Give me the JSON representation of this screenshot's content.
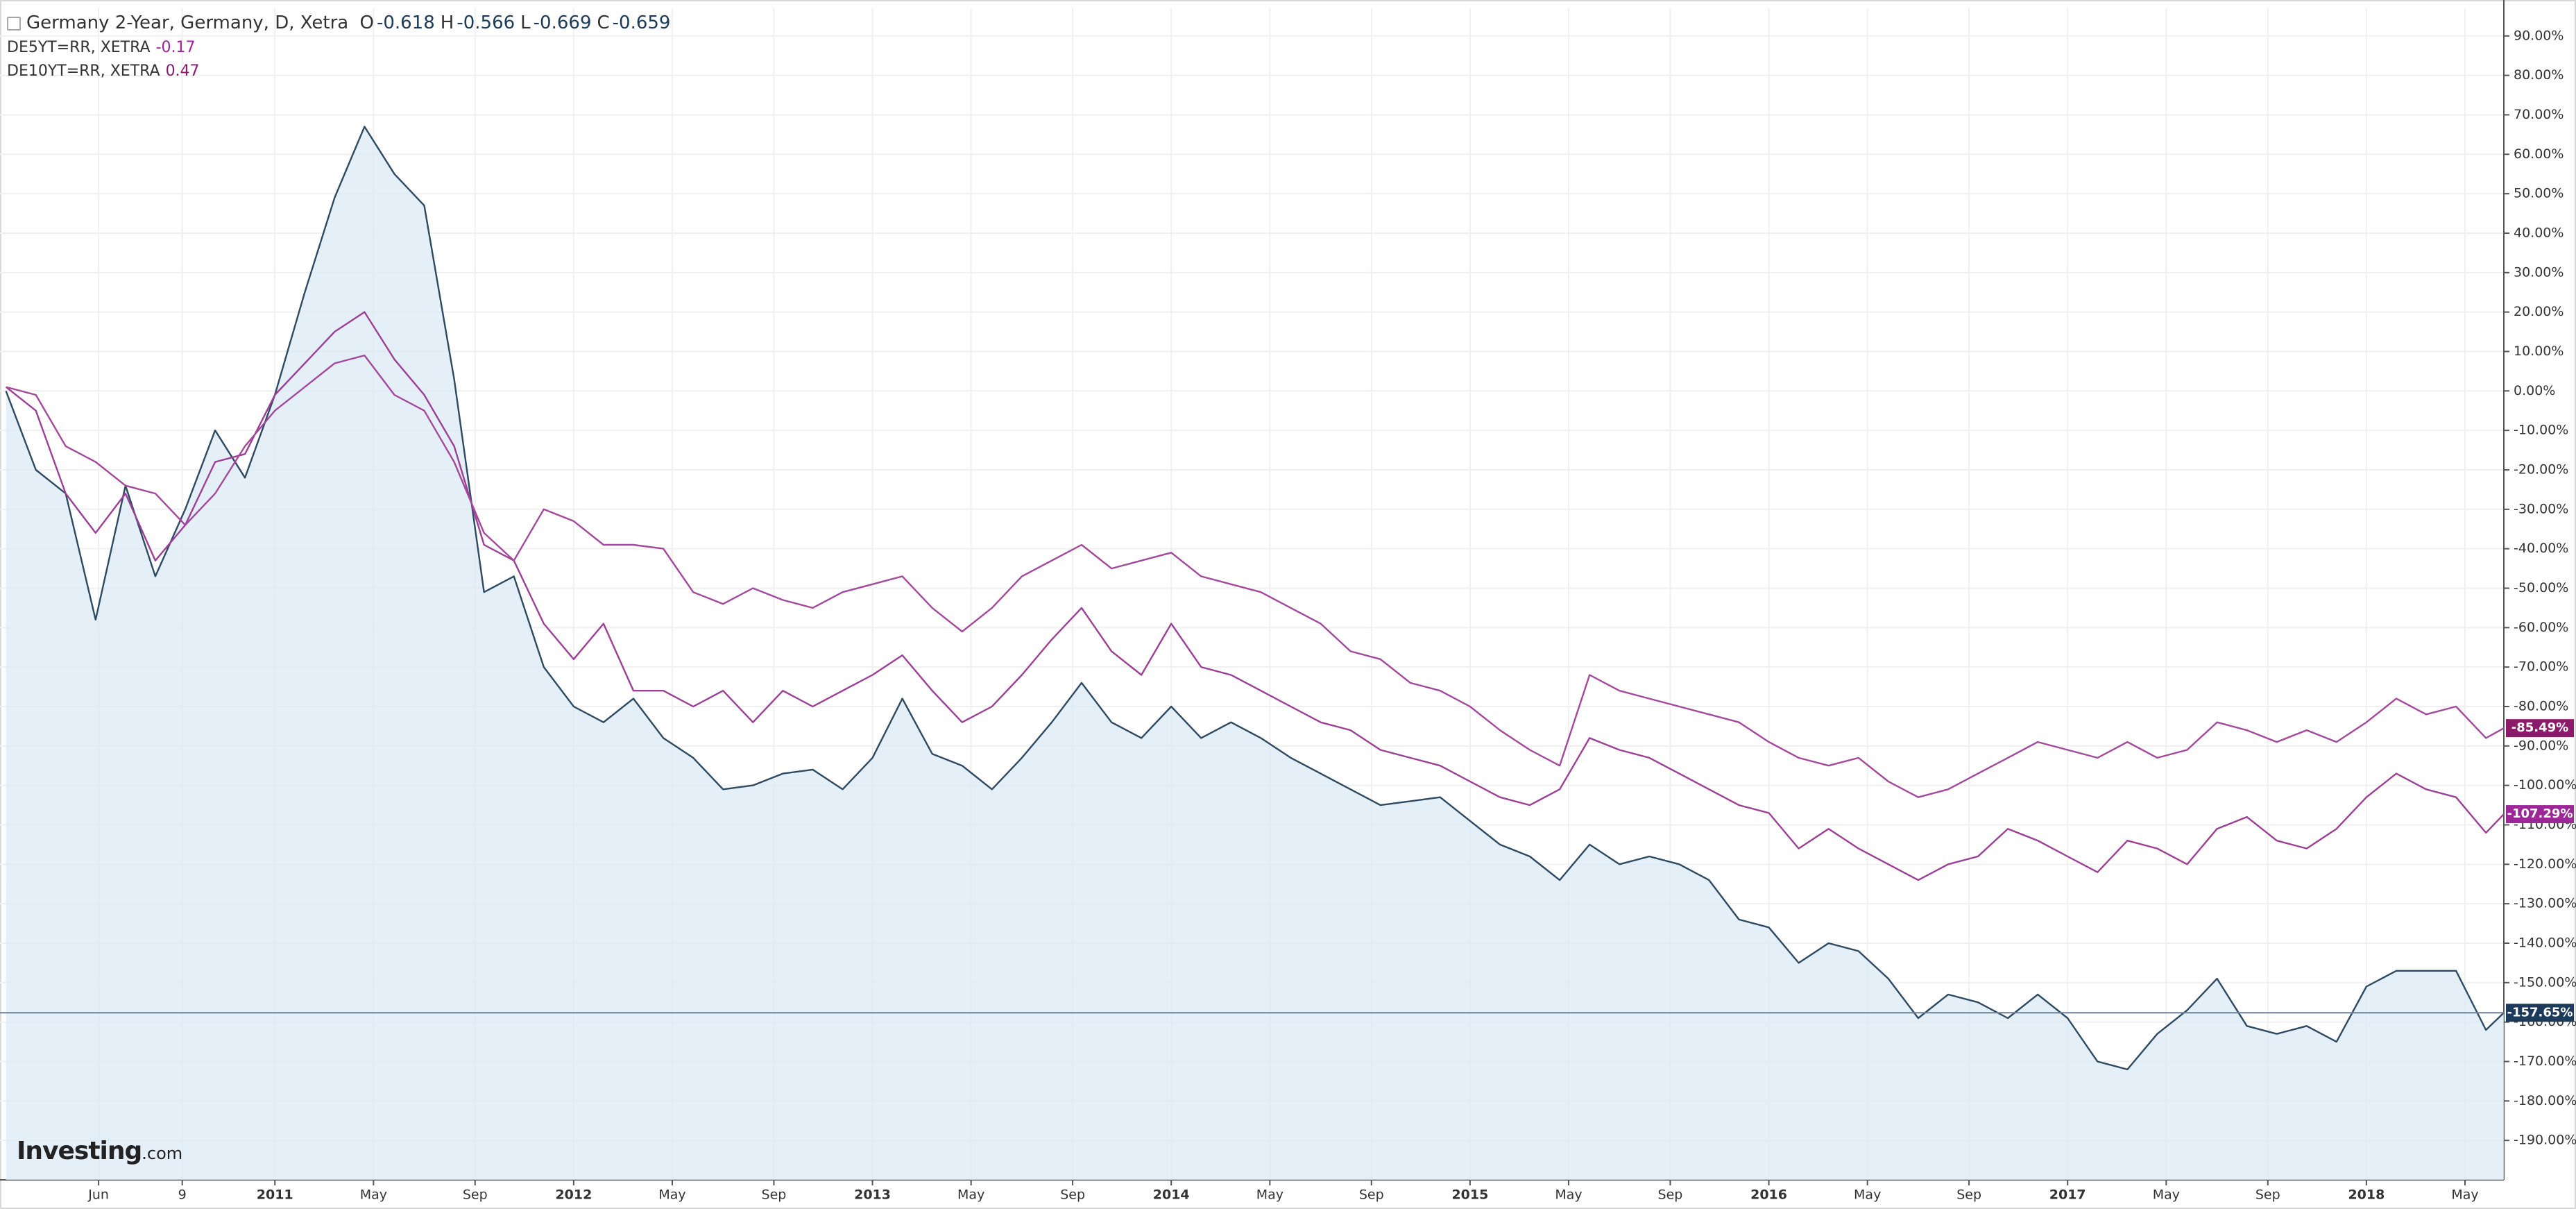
{
  "chart_data": {
    "type": "line",
    "x": [
      2010.1,
      2010.2,
      2010.3,
      2010.4,
      2010.5,
      2010.6,
      2010.7,
      2010.8,
      2010.9,
      2011.0,
      2011.1,
      2011.2,
      2011.3,
      2011.4,
      2011.5,
      2011.6,
      2011.7,
      2011.8,
      2011.9,
      2012.0,
      2012.1,
      2012.2,
      2012.3,
      2012.4,
      2012.5,
      2012.6,
      2012.7,
      2012.8,
      2012.9,
      2013.0,
      2013.1,
      2013.2,
      2013.3,
      2013.4,
      2013.5,
      2013.6,
      2013.7,
      2013.8,
      2013.9,
      2014.0,
      2014.1,
      2014.2,
      2014.3,
      2014.4,
      2014.5,
      2014.6,
      2014.7,
      2014.8,
      2014.9,
      2015.0,
      2015.1,
      2015.2,
      2015.3,
      2015.4,
      2015.5,
      2015.6,
      2015.7,
      2015.8,
      2015.9,
      2016.0,
      2016.1,
      2016.2,
      2016.3,
      2016.4,
      2016.5,
      2016.6,
      2016.7,
      2016.8,
      2016.9,
      2017.0,
      2017.1,
      2017.2,
      2017.3,
      2017.4,
      2017.5,
      2017.6,
      2017.7,
      2017.8,
      2017.9,
      2018.0,
      2018.1,
      2018.2,
      2018.3,
      2018.4,
      2018.46
    ],
    "series": [
      {
        "name": "Germany 2-Year, Germany, D, Xetra",
        "color": "#2e4a62",
        "fill": "#dce9f6",
        "ohlc": [
          {
            "label": "O",
            "value": -0.618
          },
          {
            "label": "H",
            "value": -0.566
          },
          {
            "label": "L",
            "value": -0.669
          },
          {
            "label": "C",
            "value": -0.659
          }
        ],
        "last_label": "-157.65%",
        "tag_color": "#1c3a5a",
        "values": [
          0,
          -20,
          -26,
          -58,
          -24,
          -47,
          -30,
          -10,
          -22,
          -1,
          25,
          49,
          67,
          55,
          47,
          3,
          -51,
          -47,
          -70,
          -80,
          -84,
          -78,
          -88,
          -93,
          -101,
          -100,
          -97,
          -96,
          -101,
          -93,
          -78,
          -92,
          -95,
          -101,
          -93,
          -84,
          -74,
          -84,
          -88,
          -80,
          -88,
          -84,
          -88,
          -93,
          -97,
          -101,
          -105,
          -104,
          -103,
          -109,
          -115,
          -118,
          -124,
          -115,
          -120,
          -118,
          -120,
          -124,
          -134,
          -136,
          -145,
          -140,
          -142,
          -149,
          -159,
          -153,
          -155,
          -159,
          -153,
          -159,
          -170,
          -172,
          -163,
          -157,
          -149,
          -161,
          -163,
          -161,
          -165,
          -151,
          -147,
          -147,
          -147,
          -162,
          -157.65
        ]
      },
      {
        "name": "DE5YT=RR, XETRA",
        "color": "#9c3f95",
        "quote": -0.17,
        "last_label": "-107.29%",
        "tag_color": "#9c2797",
        "values": [
          1,
          -5,
          -26,
          -36,
          -26,
          -43,
          -34,
          -18,
          -16,
          -1,
          7,
          15,
          20,
          8,
          -1,
          -14,
          -39,
          -43,
          -59,
          -68,
          -59,
          -76,
          -76,
          -80,
          -76,
          -84,
          -76,
          -80,
          -76,
          -72,
          -67,
          -76,
          -84,
          -80,
          -72,
          -63,
          -55,
          -66,
          -72,
          -59,
          -70,
          -72,
          -76,
          -80,
          -84,
          -86,
          -91,
          -93,
          -95,
          -99,
          -103,
          -105,
          -101,
          -88,
          -91,
          -93,
          -97,
          -101,
          -105,
          -107,
          -116,
          -111,
          -116,
          -120,
          -124,
          -120,
          -118,
          -111,
          -114,
          -118,
          -122,
          -114,
          -116,
          -120,
          -111,
          -108,
          -114,
          -116,
          -111,
          -103,
          -97,
          -101,
          -103,
          -112,
          -107.29
        ]
      },
      {
        "name": "DE10YT=RR, XETRA",
        "color": "#a4489c",
        "quote": 0.47,
        "last_label": "-85.49%",
        "tag_color": "#8b1a6b",
        "values": [
          1,
          -1,
          -14,
          -18,
          -24,
          -26,
          -34,
          -26,
          -14,
          -5,
          1,
          7,
          9,
          -1,
          -5,
          -18,
          -36,
          -43,
          -30,
          -33,
          -39,
          -39,
          -40,
          -51,
          -54,
          -50,
          -53,
          -55,
          -51,
          -49,
          -47,
          -55,
          -61,
          -55,
          -47,
          -43,
          -39,
          -45,
          -43,
          -41,
          -47,
          -49,
          -51,
          -55,
          -59,
          -66,
          -68,
          -74,
          -76,
          -80,
          -86,
          -91,
          -95,
          -72,
          -76,
          -78,
          -80,
          -82,
          -84,
          -89,
          -93,
          -95,
          -93,
          -99,
          -103,
          -101,
          -97,
          -93,
          -89,
          -91,
          -93,
          -89,
          -93,
          -91,
          -84,
          -86,
          -89,
          -86,
          -89,
          -84,
          -78,
          -82,
          -80,
          -88,
          -85.49
        ]
      }
    ],
    "xlim": [
      2010.08,
      2018.46
    ],
    "xticks": [
      {
        "value": 2010.41,
        "label": "Jun"
      },
      {
        "value": 2010.69,
        "label": "9"
      },
      2011,
      {
        "value": 2011.33,
        "label": "May"
      },
      {
        "value": 2011.67,
        "label": "Sep"
      },
      2012,
      {
        "value": 2012.33,
        "label": "May"
      },
      {
        "value": 2012.67,
        "label": "Sep"
      },
      2013,
      {
        "value": 2013.33,
        "label": "May"
      },
      {
        "value": 2013.67,
        "label": "Sep"
      },
      2014,
      {
        "value": 2014.33,
        "label": "May"
      },
      {
        "value": 2014.67,
        "label": "Sep"
      },
      2015,
      {
        "value": 2015.33,
        "label": "May"
      },
      {
        "value": 2015.67,
        "label": "Sep"
      },
      2016,
      {
        "value": 2016.33,
        "label": "May"
      },
      {
        "value": 2016.67,
        "label": "Sep"
      },
      2017,
      {
        "value": 2017.33,
        "label": "May"
      },
      {
        "value": 2017.67,
        "label": "Sep"
      },
      2018,
      {
        "value": 2018.33,
        "label": "May"
      }
    ],
    "ylim": [
      -200,
      97
    ],
    "yticks": [
      {
        "value": 90,
        "label": "90.00%"
      },
      {
        "value": 80,
        "label": "80.00%"
      },
      {
        "value": 70,
        "label": "70.00%"
      },
      {
        "value": 60,
        "label": "60.00%"
      },
      {
        "value": 50,
        "label": "50.00%"
      },
      {
        "value": 40,
        "label": "40.00%"
      },
      {
        "value": 30,
        "label": "30.00%"
      },
      {
        "value": 20,
        "label": "20.00%"
      },
      {
        "value": 10,
        "label": "10.00%"
      },
      {
        "value": 0,
        "label": "0.00%"
      },
      {
        "value": -10,
        "label": "-10.00%"
      },
      {
        "value": -20,
        "label": "-20.00%"
      },
      {
        "value": -30,
        "label": "-30.00%"
      },
      {
        "value": -40,
        "label": "-40.00%"
      },
      {
        "value": -50,
        "label": "-50.00%"
      },
      {
        "value": -60,
        "label": "-60.00%"
      },
      {
        "value": -70,
        "label": "-70.00%"
      },
      {
        "value": -80,
        "label": "-80.00%"
      },
      {
        "value": -90,
        "label": "-90.00%"
      },
      {
        "value": -100,
        "label": "-100.00%"
      },
      {
        "value": -110,
        "label": "-110.00%"
      },
      {
        "value": -120,
        "label": "-120.00%"
      },
      {
        "value": -130,
        "label": "-130.00%"
      },
      {
        "value": -140,
        "label": "-140.00%"
      },
      {
        "value": -150,
        "label": "-150.00%"
      },
      {
        "value": -160,
        "label": "-160.00%"
      },
      {
        "value": -170,
        "label": "-170.00%"
      },
      {
        "value": -180,
        "label": "-180.00%"
      },
      {
        "value": -190,
        "label": "-190.00%"
      }
    ],
    "grid": true,
    "logo": {
      "brand": "Investing",
      "suffix": ".com"
    }
  }
}
